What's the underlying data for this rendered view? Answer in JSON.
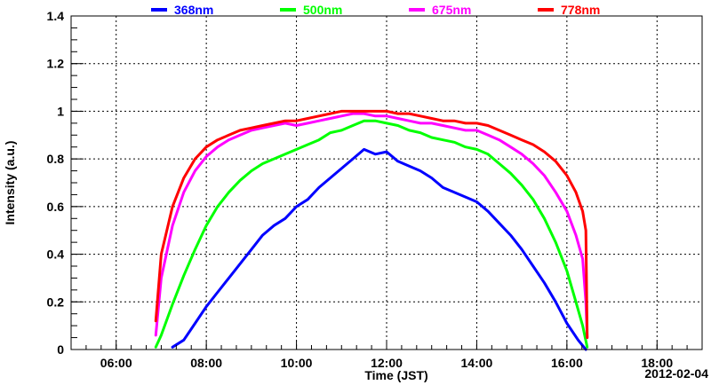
{
  "chart_data": {
    "type": "line",
    "title": "",
    "xlabel": "Time (JST)",
    "ylabel": "Intensity (a.u.)",
    "date_label": "2012-02-04",
    "x_unit": "hours JST",
    "xlim": [
      5.0,
      19.0
    ],
    "ylim": [
      0,
      1.4
    ],
    "x_tick_labels": [
      "06:00",
      "08:00",
      "10:00",
      "12:00",
      "14:00",
      "16:00",
      "18:00"
    ],
    "y_tick_labels": [
      "0",
      "0.2",
      "0.4",
      "0.6",
      "0.8",
      "1",
      "1.2",
      "1.4"
    ],
    "grid": true,
    "legend_position": "top",
    "series": [
      {
        "name": "368nm",
        "color": "#0000ff",
        "x": [
          7.25,
          7.5,
          7.75,
          8.0,
          8.25,
          8.5,
          8.75,
          9.0,
          9.25,
          9.5,
          9.75,
          10.0,
          10.25,
          10.5,
          10.75,
          11.0,
          11.25,
          11.5,
          11.75,
          12.0,
          12.25,
          12.5,
          12.75,
          13.0,
          13.25,
          13.5,
          13.75,
          14.0,
          14.25,
          14.5,
          14.75,
          15.0,
          15.25,
          15.5,
          15.75,
          16.0,
          16.25,
          16.42
        ],
        "y": [
          0.01,
          0.04,
          0.11,
          0.18,
          0.24,
          0.3,
          0.36,
          0.42,
          0.48,
          0.52,
          0.55,
          0.6,
          0.63,
          0.68,
          0.72,
          0.76,
          0.8,
          0.84,
          0.82,
          0.83,
          0.79,
          0.77,
          0.75,
          0.72,
          0.68,
          0.66,
          0.64,
          0.62,
          0.58,
          0.53,
          0.48,
          0.42,
          0.35,
          0.28,
          0.2,
          0.11,
          0.04,
          0.0
        ]
      },
      {
        "name": "500nm",
        "color": "#00ff00",
        "x": [
          6.88,
          7.0,
          7.25,
          7.5,
          7.75,
          8.0,
          8.25,
          8.5,
          8.75,
          9.0,
          9.25,
          9.5,
          9.75,
          10.0,
          10.25,
          10.5,
          10.75,
          11.0,
          11.25,
          11.5,
          11.75,
          12.0,
          12.25,
          12.5,
          12.75,
          13.0,
          13.25,
          13.5,
          13.75,
          14.0,
          14.25,
          14.5,
          14.75,
          15.0,
          15.25,
          15.5,
          15.75,
          16.0,
          16.2,
          16.35,
          16.45
        ],
        "y": [
          0.01,
          0.06,
          0.19,
          0.31,
          0.42,
          0.52,
          0.6,
          0.66,
          0.71,
          0.75,
          0.78,
          0.8,
          0.82,
          0.84,
          0.86,
          0.88,
          0.91,
          0.92,
          0.94,
          0.96,
          0.96,
          0.95,
          0.94,
          0.92,
          0.91,
          0.89,
          0.88,
          0.87,
          0.85,
          0.84,
          0.82,
          0.78,
          0.74,
          0.69,
          0.63,
          0.55,
          0.45,
          0.33,
          0.2,
          0.1,
          0.01
        ]
      },
      {
        "name": "675nm",
        "color": "#ff00ff",
        "x": [
          6.88,
          7.0,
          7.25,
          7.5,
          7.75,
          8.0,
          8.25,
          8.5,
          8.75,
          9.0,
          9.25,
          9.5,
          9.75,
          10.0,
          10.25,
          10.5,
          10.75,
          11.0,
          11.25,
          11.5,
          11.75,
          12.0,
          12.25,
          12.5,
          12.75,
          13.0,
          13.25,
          13.5,
          13.75,
          14.0,
          14.25,
          14.5,
          14.75,
          15.0,
          15.25,
          15.5,
          15.75,
          16.0,
          16.2,
          16.35,
          16.42,
          16.45
        ],
        "y": [
          0.06,
          0.3,
          0.52,
          0.66,
          0.75,
          0.81,
          0.85,
          0.88,
          0.9,
          0.92,
          0.93,
          0.94,
          0.95,
          0.94,
          0.95,
          0.96,
          0.97,
          0.98,
          0.99,
          0.99,
          0.98,
          0.98,
          0.97,
          0.96,
          0.95,
          0.95,
          0.94,
          0.93,
          0.92,
          0.92,
          0.9,
          0.88,
          0.85,
          0.82,
          0.78,
          0.73,
          0.66,
          0.58,
          0.48,
          0.38,
          0.2,
          0.05
        ]
      },
      {
        "name": "778nm",
        "color": "#ff0000",
        "x": [
          6.88,
          7.0,
          7.25,
          7.5,
          7.75,
          8.0,
          8.25,
          8.5,
          8.75,
          9.0,
          9.25,
          9.5,
          9.75,
          10.0,
          10.25,
          10.5,
          10.75,
          11.0,
          11.25,
          11.5,
          11.75,
          12.0,
          12.25,
          12.5,
          12.75,
          13.0,
          13.25,
          13.5,
          13.75,
          14.0,
          14.25,
          14.5,
          14.75,
          15.0,
          15.25,
          15.5,
          15.75,
          16.0,
          16.2,
          16.35,
          16.42,
          16.45
        ],
        "y": [
          0.12,
          0.4,
          0.6,
          0.72,
          0.8,
          0.85,
          0.88,
          0.9,
          0.92,
          0.93,
          0.94,
          0.95,
          0.96,
          0.96,
          0.97,
          0.98,
          0.99,
          1.0,
          1.0,
          1.0,
          1.0,
          1.0,
          0.99,
          0.99,
          0.98,
          0.97,
          0.96,
          0.96,
          0.95,
          0.95,
          0.94,
          0.92,
          0.9,
          0.88,
          0.86,
          0.83,
          0.79,
          0.73,
          0.66,
          0.58,
          0.5,
          0.05
        ]
      }
    ]
  }
}
